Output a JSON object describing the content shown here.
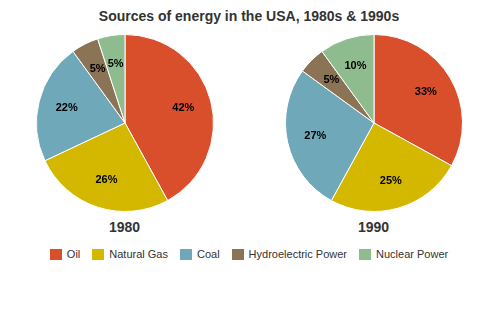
{
  "chart_data": {
    "type": "pie",
    "title": "Sources of energy in the USA, 1980s & 1990s",
    "categories": [
      "Oil",
      "Natural Gas",
      "Coal",
      "Hydroelectric Power",
      "Nuclear Power"
    ],
    "colors": [
      "#D94F2B",
      "#D4B800",
      "#6FA8B8",
      "#8B7355",
      "#8FBC8F"
    ],
    "series": [
      {
        "name": "1980",
        "values": [
          42,
          26,
          22,
          5,
          5
        ],
        "value_labels": [
          "42%",
          "26%",
          "22%",
          "5%",
          "5%"
        ]
      },
      {
        "name": "1990",
        "values": [
          33,
          25,
          27,
          5,
          10
        ],
        "value_labels": [
          "33%",
          "25%",
          "27%",
          "5%",
          "10%"
        ]
      }
    ],
    "data_labels": true,
    "legend": "bottom"
  }
}
